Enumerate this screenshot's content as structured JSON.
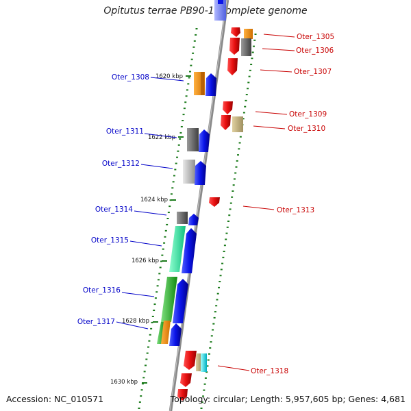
{
  "title": "Opitutus terrae PB90-1, complete genome",
  "footer": {
    "accession": "Accession: NC_010571",
    "summary": "Topology: circular; Length: 5,957,605 bp; Genes: 4,681"
  },
  "colors": {
    "forward_label": "#0000c8",
    "reverse_label": "#c80000",
    "backbone": "#888888",
    "tick": "#1a7a1a",
    "forward_gene": "#0a14e8",
    "reverse_gene": "#e81010"
  },
  "ticks": [
    "1620 kbp",
    "1622 kbp",
    "1624 kbp",
    "1626 kbp",
    "1628 kbp",
    "1630 kbp"
  ],
  "genes": [
    {
      "id": "Oter_1305",
      "strand": "reverse",
      "color": "#ff8c00"
    },
    {
      "id": "Oter_1306",
      "strand": "reverse",
      "color": "#707070"
    },
    {
      "id": "Oter_1307",
      "strand": "reverse",
      "color": "#e81010"
    },
    {
      "id": "Oter_1308",
      "strand": "forward",
      "color": "#ff8c00"
    },
    {
      "id": "Oter_1309",
      "strand": "reverse",
      "color": "#e81010"
    },
    {
      "id": "Oter_1310",
      "strand": "reverse",
      "color": "#c8b878"
    },
    {
      "id": "Oter_1311",
      "strand": "forward",
      "color": "#707070"
    },
    {
      "id": "Oter_1312",
      "strand": "forward",
      "color": "#c0c0c0"
    },
    {
      "id": "Oter_1313",
      "strand": "reverse",
      "color": "#e81010"
    },
    {
      "id": "Oter_1314",
      "strand": "forward",
      "color": "#707070"
    },
    {
      "id": "Oter_1315",
      "strand": "forward",
      "color": "#2ee8a0"
    },
    {
      "id": "Oter_1316",
      "strand": "forward",
      "color": "#30c030"
    },
    {
      "id": "Oter_1317",
      "strand": "forward",
      "color": "#ff8c00"
    },
    {
      "id": "Oter_1318",
      "strand": "reverse",
      "color": "#00e8e8"
    }
  ]
}
